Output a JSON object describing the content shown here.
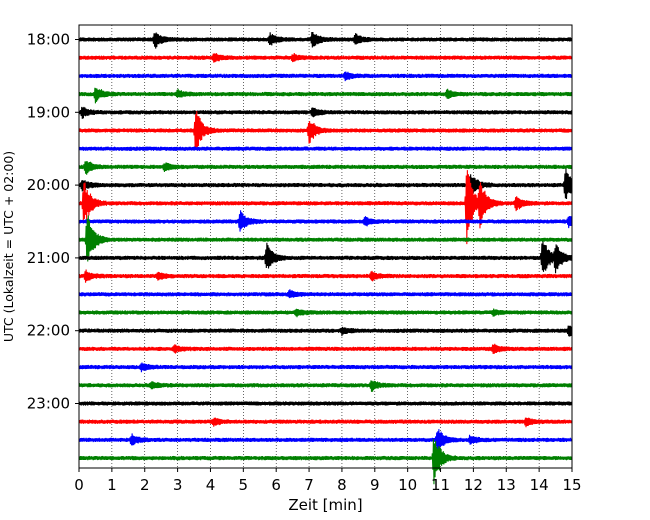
{
  "chart_data": {
    "type": "line",
    "subtype": "helicorder",
    "title": "",
    "xlabel": "Zeit  [min]",
    "ylabel": "UTC (Lokalzeit = UTC + 02:00)",
    "xlim": [
      0,
      15
    ],
    "xticks": [
      "0",
      "1",
      "2",
      "3",
      "4",
      "5",
      "6",
      "7",
      "8",
      "9",
      "10",
      "11",
      "12",
      "13",
      "14",
      "15"
    ],
    "yticks": [
      "18:00",
      "19:00",
      "20:00",
      "21:00",
      "22:00",
      "23:00"
    ],
    "grid": {
      "x": "dotted vertical lines at each minute",
      "y": "none"
    },
    "trace_minutes": 15,
    "color_cycle": [
      "#000000",
      "#ff0000",
      "#0000ff",
      "#008000"
    ],
    "traces": [
      {
        "start": "18:00",
        "color": "#000000",
        "events": [
          {
            "t": 2.3,
            "amp": 1.0
          },
          {
            "t": 5.8,
            "amp": 0.7
          },
          {
            "t": 7.1,
            "amp": 0.9
          },
          {
            "t": 8.4,
            "amp": 0.6
          }
        ]
      },
      {
        "start": "18:15",
        "color": "#ff0000",
        "events": [
          {
            "t": 4.1,
            "amp": 0.5
          },
          {
            "t": 6.5,
            "amp": 0.4
          }
        ]
      },
      {
        "start": "18:30",
        "color": "#0000ff",
        "events": [
          {
            "t": 8.1,
            "amp": 0.4
          }
        ]
      },
      {
        "start": "18:45",
        "color": "#008000",
        "events": [
          {
            "t": 0.5,
            "amp": 0.9
          },
          {
            "t": 3.0,
            "amp": 0.4
          },
          {
            "t": 11.2,
            "amp": 0.5
          }
        ]
      },
      {
        "start": "19:00",
        "color": "#000000",
        "events": [
          {
            "t": 0.1,
            "amp": 0.6
          },
          {
            "t": 7.1,
            "amp": 0.5
          }
        ]
      },
      {
        "start": "19:15",
        "color": "#ff0000",
        "events": [
          {
            "t": 3.55,
            "amp": 2.6
          },
          {
            "t": 7.0,
            "amp": 1.5
          }
        ]
      },
      {
        "start": "19:30",
        "color": "#0000ff",
        "events": []
      },
      {
        "start": "19:45",
        "color": "#008000",
        "events": [
          {
            "t": 0.2,
            "amp": 0.8
          },
          {
            "t": 2.6,
            "amp": 0.5
          }
        ]
      },
      {
        "start": "20:00",
        "color": "#000000",
        "events": [
          {
            "t": 0.1,
            "amp": 0.7
          },
          {
            "t": 11.9,
            "amp": 1.6
          },
          {
            "t": 14.8,
            "amp": 1.9
          }
        ]
      },
      {
        "start": "20:15",
        "color": "#ff0000",
        "events": [
          {
            "t": 0.15,
            "amp": 2.8
          },
          {
            "t": 11.8,
            "amp": 4.5
          },
          {
            "t": 12.2,
            "amp": 2.5
          },
          {
            "t": 13.3,
            "amp": 0.9
          }
        ]
      },
      {
        "start": "20:30",
        "color": "#0000ff",
        "events": [
          {
            "t": 4.9,
            "amp": 1.2
          },
          {
            "t": 8.7,
            "amp": 0.5
          },
          {
            "t": 14.9,
            "amp": 0.6
          }
        ]
      },
      {
        "start": "20:45",
        "color": "#008000",
        "events": [
          {
            "t": 0.25,
            "amp": 3.2
          }
        ]
      },
      {
        "start": "21:00",
        "color": "#000000",
        "events": [
          {
            "t": 5.7,
            "amp": 1.7
          },
          {
            "t": 14.1,
            "amp": 2.4
          },
          {
            "t": 14.5,
            "amp": 1.6
          }
        ]
      },
      {
        "start": "21:15",
        "color": "#ff0000",
        "events": [
          {
            "t": 0.2,
            "amp": 0.6
          },
          {
            "t": 2.4,
            "amp": 0.4
          },
          {
            "t": 8.9,
            "amp": 0.5
          }
        ]
      },
      {
        "start": "21:30",
        "color": "#0000ff",
        "events": [
          {
            "t": 6.4,
            "amp": 0.4
          }
        ]
      },
      {
        "start": "21:45",
        "color": "#008000",
        "events": [
          {
            "t": 6.6,
            "amp": 0.4
          },
          {
            "t": 12.6,
            "amp": 0.3
          }
        ]
      },
      {
        "start": "22:00",
        "color": "#000000",
        "events": [
          {
            "t": 8.0,
            "amp": 0.4
          },
          {
            "t": 14.9,
            "amp": 0.6
          }
        ]
      },
      {
        "start": "22:15",
        "color": "#ff0000",
        "events": [
          {
            "t": 2.9,
            "amp": 0.4
          },
          {
            "t": 12.6,
            "amp": 0.5
          }
        ]
      },
      {
        "start": "22:30",
        "color": "#0000ff",
        "events": [
          {
            "t": 1.9,
            "amp": 0.4
          }
        ]
      },
      {
        "start": "22:45",
        "color": "#008000",
        "events": [
          {
            "t": 2.2,
            "amp": 0.4
          },
          {
            "t": 8.9,
            "amp": 0.6
          }
        ]
      },
      {
        "start": "23:00",
        "color": "#000000",
        "events": []
      },
      {
        "start": "23:15",
        "color": "#ff0000",
        "events": [
          {
            "t": 4.1,
            "amp": 0.4
          },
          {
            "t": 13.6,
            "amp": 0.5
          }
        ]
      },
      {
        "start": "23:30",
        "color": "#0000ff",
        "events": [
          {
            "t": 1.6,
            "amp": 0.6
          },
          {
            "t": 10.9,
            "amp": 1.4
          },
          {
            "t": 11.9,
            "amp": 0.5
          }
        ]
      },
      {
        "start": "23:45",
        "color": "#008000",
        "events": [
          {
            "t": 10.8,
            "amp": 2.9
          }
        ]
      }
    ]
  }
}
